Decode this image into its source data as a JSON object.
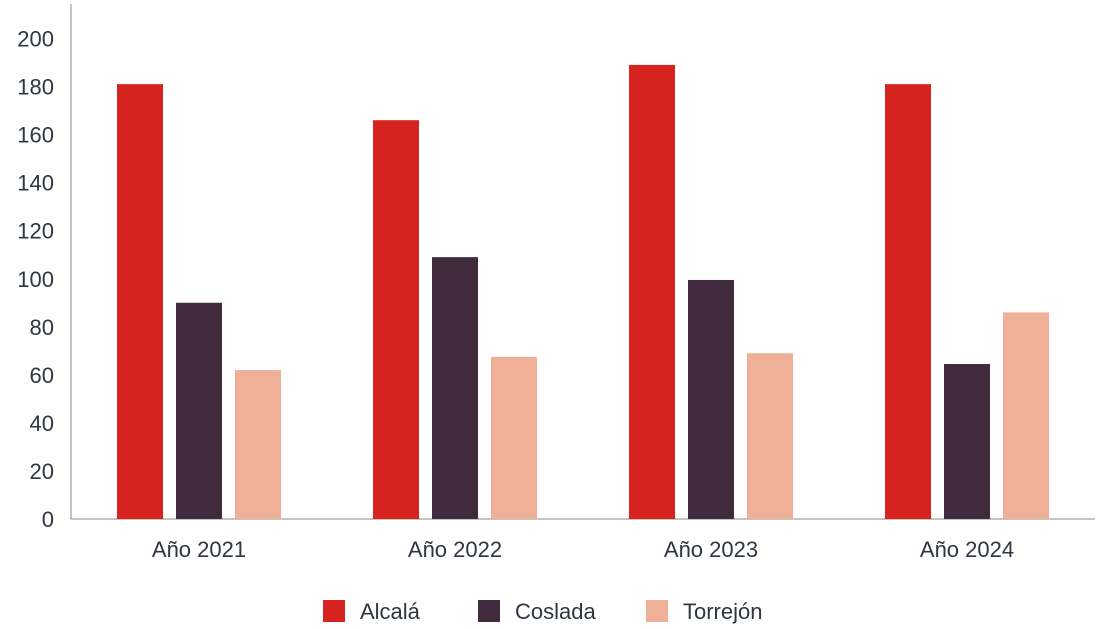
{
  "chart_data": {
    "type": "bar",
    "categories": [
      "Año 2021",
      "Año 2022",
      "Año 2023",
      "Año 2024"
    ],
    "series": [
      {
        "name": "Alcalá",
        "color": "#d7231d",
        "values": [
          181,
          166,
          189,
          181
        ]
      },
      {
        "name": "Coslada",
        "color": "#3f2b3d",
        "values": [
          90,
          109,
          99.5,
          64.5
        ]
      },
      {
        "name": "Torrejón",
        "color": "#efb097",
        "values": [
          62,
          67.5,
          69,
          86
        ]
      }
    ],
    "ylim": [
      0,
      200
    ],
    "yticks": [
      "0",
      "20",
      "40",
      "60",
      "80",
      "100",
      "120",
      "140",
      "160",
      "180",
      "200"
    ],
    "title": "",
    "xlabel": "",
    "ylabel": "",
    "grid": false,
    "legend_position": "bottom-center"
  }
}
